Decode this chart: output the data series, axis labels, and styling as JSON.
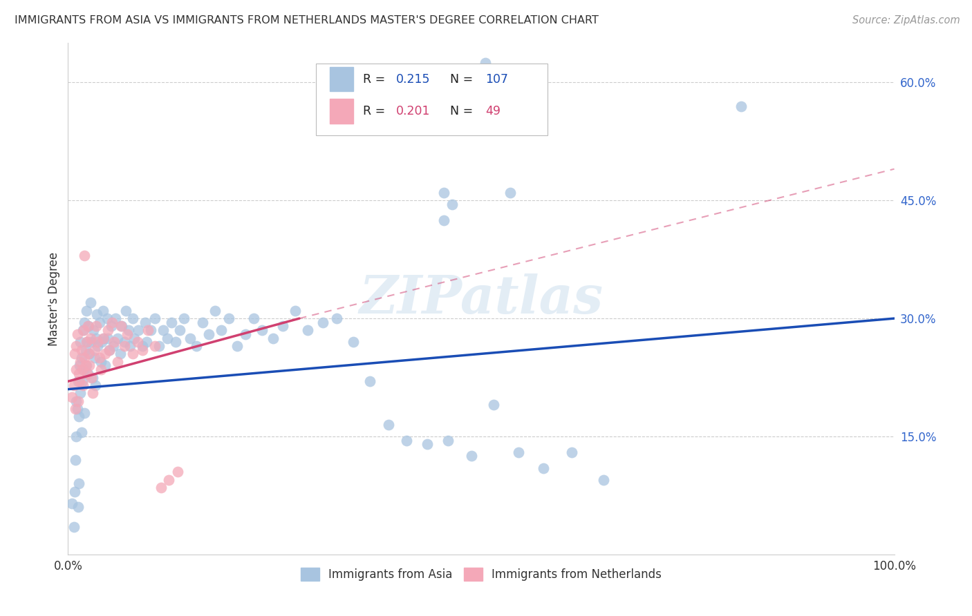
{
  "title": "IMMIGRANTS FROM ASIA VS IMMIGRANTS FROM NETHERLANDS MASTER'S DEGREE CORRELATION CHART",
  "source": "Source: ZipAtlas.com",
  "ylabel": "Master's Degree",
  "xlim": [
    0.0,
    1.0
  ],
  "ylim": [
    0.0,
    0.65
  ],
  "ytick_positions": [
    0.15,
    0.3,
    0.45,
    0.6
  ],
  "ytick_labels": [
    "15.0%",
    "30.0%",
    "45.0%",
    "60.0%"
  ],
  "xtick_positions": [
    0.0,
    0.25,
    0.5,
    0.75,
    1.0
  ],
  "xtick_labels": [
    "0.0%",
    "",
    "",
    "",
    "100.0%"
  ],
  "R_asia": 0.215,
  "N_asia": 107,
  "R_netherlands": 0.201,
  "N_netherlands": 49,
  "legend_label_asia": "Immigrants from Asia",
  "legend_label_netherlands": "Immigrants from Netherlands",
  "color_asia": "#a8c4e0",
  "color_netherlands": "#f4a8b8",
  "line_color_asia": "#1a4db5",
  "line_color_netherlands": "#d04070",
  "watermark": "ZIPatlas",
  "bg_color": "#ffffff",
  "grid_color": "#cccccc",
  "title_color": "#333333",
  "source_color": "#999999",
  "label_color": "#333333",
  "ytick_color": "#3366cc",
  "scatter_size": 130,
  "scatter_alpha": 0.75,
  "asia_x": [
    0.005,
    0.007,
    0.008,
    0.009,
    0.01,
    0.01,
    0.011,
    0.012,
    0.012,
    0.013,
    0.013,
    0.014,
    0.015,
    0.015,
    0.016,
    0.016,
    0.017,
    0.018,
    0.019,
    0.02,
    0.02,
    0.021,
    0.022,
    0.022,
    0.023,
    0.024,
    0.025,
    0.026,
    0.027,
    0.028,
    0.03,
    0.031,
    0.032,
    0.033,
    0.034,
    0.035,
    0.036,
    0.038,
    0.04,
    0.041,
    0.042,
    0.043,
    0.045,
    0.047,
    0.048,
    0.05,
    0.052,
    0.055,
    0.057,
    0.06,
    0.063,
    0.065,
    0.068,
    0.07,
    0.073,
    0.075,
    0.078,
    0.08,
    0.085,
    0.09,
    0.093,
    0.095,
    0.1,
    0.105,
    0.11,
    0.115,
    0.12,
    0.125,
    0.13,
    0.135,
    0.14,
    0.148,
    0.155,
    0.163,
    0.17,
    0.178,
    0.185,
    0.195,
    0.205,
    0.215,
    0.225,
    0.235,
    0.248,
    0.26,
    0.275,
    0.29,
    0.308,
    0.325,
    0.345,
    0.365,
    0.388,
    0.41,
    0.435,
    0.46,
    0.488,
    0.515,
    0.545,
    0.575,
    0.61,
    0.648,
    0.505,
    0.52,
    0.455,
    0.465,
    0.535,
    0.455,
    0.815
  ],
  "asia_y": [
    0.065,
    0.035,
    0.08,
    0.12,
    0.195,
    0.15,
    0.185,
    0.22,
    0.06,
    0.09,
    0.175,
    0.24,
    0.27,
    0.205,
    0.155,
    0.25,
    0.22,
    0.285,
    0.235,
    0.295,
    0.18,
    0.26,
    0.24,
    0.31,
    0.27,
    0.23,
    0.29,
    0.255,
    0.32,
    0.27,
    0.225,
    0.285,
    0.25,
    0.215,
    0.275,
    0.305,
    0.265,
    0.295,
    0.245,
    0.27,
    0.31,
    0.275,
    0.24,
    0.3,
    0.275,
    0.26,
    0.29,
    0.265,
    0.3,
    0.275,
    0.255,
    0.29,
    0.27,
    0.31,
    0.285,
    0.265,
    0.3,
    0.275,
    0.285,
    0.265,
    0.295,
    0.27,
    0.285,
    0.3,
    0.265,
    0.285,
    0.275,
    0.295,
    0.27,
    0.285,
    0.3,
    0.275,
    0.265,
    0.295,
    0.28,
    0.31,
    0.285,
    0.3,
    0.265,
    0.28,
    0.3,
    0.285,
    0.275,
    0.29,
    0.31,
    0.285,
    0.295,
    0.3,
    0.27,
    0.22,
    0.165,
    0.145,
    0.14,
    0.145,
    0.125,
    0.19,
    0.13,
    0.11,
    0.13,
    0.095,
    0.625,
    0.545,
    0.46,
    0.445,
    0.46,
    0.425,
    0.57
  ],
  "neth_x": [
    0.005,
    0.007,
    0.008,
    0.009,
    0.01,
    0.01,
    0.011,
    0.012,
    0.013,
    0.014,
    0.015,
    0.016,
    0.017,
    0.018,
    0.019,
    0.02,
    0.021,
    0.022,
    0.023,
    0.024,
    0.025,
    0.026,
    0.027,
    0.028,
    0.03,
    0.032,
    0.034,
    0.036,
    0.038,
    0.04,
    0.042,
    0.045,
    0.048,
    0.05,
    0.053,
    0.056,
    0.06,
    0.064,
    0.068,
    0.072,
    0.078,
    0.084,
    0.09,
    0.097,
    0.105,
    0.113,
    0.122,
    0.133,
    0.02
  ],
  "neth_y": [
    0.2,
    0.215,
    0.255,
    0.185,
    0.235,
    0.265,
    0.28,
    0.195,
    0.23,
    0.22,
    0.245,
    0.26,
    0.235,
    0.215,
    0.285,
    0.25,
    0.24,
    0.27,
    0.23,
    0.29,
    0.255,
    0.24,
    0.275,
    0.225,
    0.205,
    0.26,
    0.29,
    0.27,
    0.25,
    0.235,
    0.275,
    0.255,
    0.285,
    0.26,
    0.295,
    0.27,
    0.245,
    0.29,
    0.265,
    0.28,
    0.255,
    0.27,
    0.26,
    0.285,
    0.265,
    0.085,
    0.095,
    0.105,
    0.38
  ],
  "line_asia_x0": 0.0,
  "line_asia_y0": 0.21,
  "line_asia_x1": 1.0,
  "line_asia_y1": 0.3,
  "line_neth_solid_x0": 0.0,
  "line_neth_solid_y0": 0.22,
  "line_neth_solid_x1": 0.28,
  "line_neth_solid_y1": 0.3,
  "line_neth_dash_x0": 0.28,
  "line_neth_dash_y0": 0.3,
  "line_neth_dash_x1": 1.0,
  "line_neth_dash_y1": 0.49
}
